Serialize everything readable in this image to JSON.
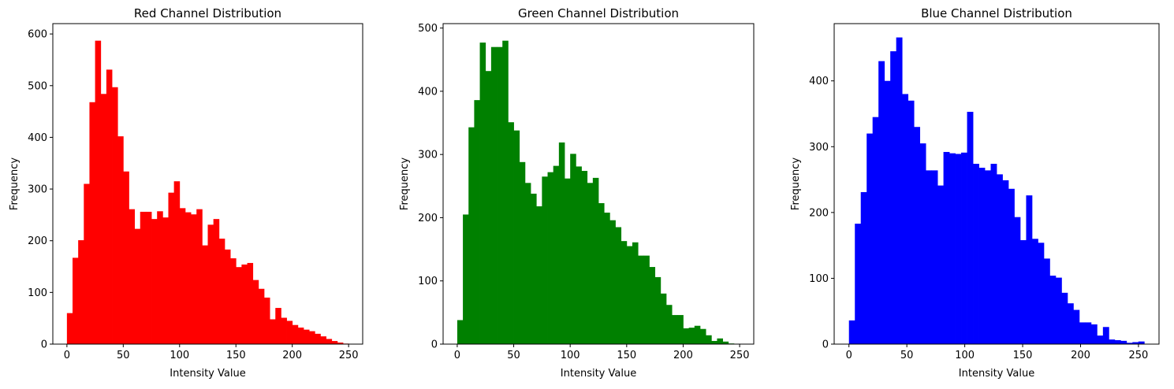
{
  "chart_data": [
    {
      "type": "bar",
      "title": "Red Channel Distribution",
      "xlabel": "Intensity Value",
      "ylabel": "Frequency",
      "color": "#ff0000",
      "bin_start": 0,
      "bin_width": 5,
      "xlim": [
        -12.5,
        262.5
      ],
      "ylim": [
        0,
        620
      ],
      "xticks": [
        0,
        50,
        100,
        150,
        200,
        250
      ],
      "yticks": [
        0,
        100,
        200,
        300,
        400,
        500,
        600
      ],
      "values": [
        60,
        167,
        201,
        310,
        468,
        587,
        484,
        531,
        497,
        402,
        334,
        261,
        223,
        256,
        256,
        242,
        257,
        245,
        293,
        315,
        263,
        255,
        251,
        261,
        191,
        231,
        242,
        204,
        183,
        166,
        149,
        154,
        157,
        124,
        107,
        90,
        48,
        70,
        51,
        45,
        37,
        32,
        28,
        25,
        20,
        15,
        10,
        6,
        3,
        1
      ]
    },
    {
      "type": "bar",
      "title": "Green Channel Distribution",
      "xlabel": "Intensity Value",
      "ylabel": "Frequency",
      "color": "#008000",
      "bin_start": 0,
      "bin_width": 5,
      "xlim": [
        -12.5,
        262.5
      ],
      "ylim": [
        0,
        507
      ],
      "xticks": [
        0,
        50,
        100,
        150,
        200,
        250
      ],
      "yticks": [
        0,
        100,
        200,
        300,
        400,
        500
      ],
      "values": [
        38,
        205,
        343,
        386,
        477,
        432,
        470,
        470,
        480,
        351,
        338,
        288,
        255,
        238,
        218,
        265,
        272,
        282,
        319,
        262,
        301,
        281,
        274,
        255,
        263,
        223,
        208,
        196,
        185,
        163,
        155,
        161,
        140,
        140,
        122,
        106,
        80,
        62,
        46,
        46,
        25,
        26,
        29,
        24,
        14,
        5,
        9,
        4,
        1
      ]
    },
    {
      "type": "bar",
      "title": "Blue Channel Distribution",
      "xlabel": "Intensity Value",
      "ylabel": "Frequency",
      "color": "#0000ff",
      "bin_start": 0,
      "bin_width": 5.1,
      "xlim": [
        -12.75,
        267.75
      ],
      "ylim": [
        0,
        487
      ],
      "xticks": [
        0,
        50,
        100,
        150,
        200,
        250
      ],
      "yticks": [
        0,
        100,
        200,
        300,
        400
      ],
      "values": [
        36,
        183,
        231,
        320,
        345,
        430,
        400,
        445,
        466,
        380,
        370,
        330,
        305,
        264,
        264,
        241,
        292,
        290,
        289,
        291,
        353,
        274,
        268,
        264,
        274,
        258,
        249,
        236,
        193,
        158,
        226,
        160,
        154,
        130,
        104,
        101,
        78,
        62,
        52,
        33,
        33,
        30,
        13,
        26,
        7,
        6,
        5,
        2,
        3,
        4
      ]
    }
  ]
}
